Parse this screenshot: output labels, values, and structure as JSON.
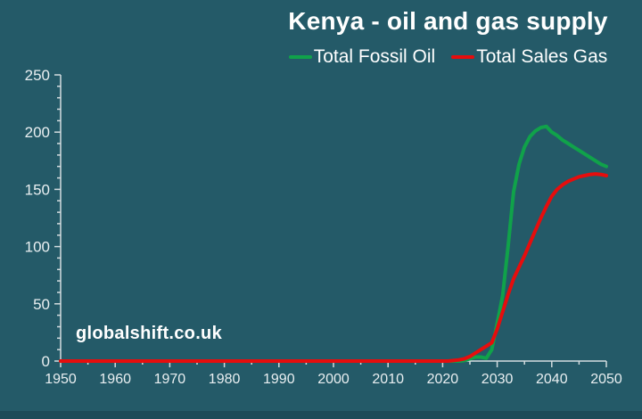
{
  "page": {
    "background_color": "#245a68",
    "footer_band_color": "#1d4b58"
  },
  "header": {
    "title": "Kenya - oil and gas supply"
  },
  "legend": {
    "position": "top",
    "items": [
      {
        "label": "Total Fossil Oil",
        "color": "#10a24a"
      },
      {
        "label": "Total Sales Gas",
        "color": "#e60d0d"
      }
    ]
  },
  "watermark": {
    "text": "globalshift.co.uk"
  },
  "chart_data": {
    "type": "line",
    "title": "Kenya - oil and gas supply",
    "xlabel": "",
    "ylabel": "",
    "xlim": [
      1950,
      2050
    ],
    "ylim": [
      0,
      250
    ],
    "x_major_ticks": [
      1950,
      1960,
      1970,
      1980,
      1990,
      2000,
      2010,
      2020,
      2030,
      2040,
      2050
    ],
    "x_minor_step": 5,
    "y_major_ticks": [
      0,
      50,
      100,
      150,
      200,
      250
    ],
    "y_minor_step": 10,
    "grid": false,
    "legend_position": "top",
    "axis_color": "#d3dcdf",
    "tick_label_color": "#e9eff1",
    "series": [
      {
        "name": "Total Fossil Oil",
        "color": "#10a24a",
        "points": [
          [
            1950,
            0
          ],
          [
            1960,
            0
          ],
          [
            1970,
            0
          ],
          [
            1980,
            0
          ],
          [
            1990,
            0
          ],
          [
            2000,
            0
          ],
          [
            2010,
            0
          ],
          [
            2015,
            0
          ],
          [
            2020,
            0
          ],
          [
            2022,
            0
          ],
          [
            2023,
            0
          ],
          [
            2024,
            0.5
          ],
          [
            2025,
            2
          ],
          [
            2026,
            3.5
          ],
          [
            2027,
            3.5
          ],
          [
            2028,
            2.5
          ],
          [
            2029,
            10
          ],
          [
            2030,
            33
          ],
          [
            2031,
            57
          ],
          [
            2032,
            100
          ],
          [
            2033,
            148
          ],
          [
            2034,
            172
          ],
          [
            2035,
            187
          ],
          [
            2036,
            196
          ],
          [
            2037,
            201
          ],
          [
            2038,
            204
          ],
          [
            2039,
            205
          ],
          [
            2040,
            200
          ],
          [
            2041,
            197
          ],
          [
            2042,
            193
          ],
          [
            2043,
            190
          ],
          [
            2044,
            187
          ],
          [
            2045,
            184
          ],
          [
            2046,
            181
          ],
          [
            2047,
            178
          ],
          [
            2048,
            175
          ],
          [
            2049,
            172
          ],
          [
            2050,
            170
          ]
        ]
      },
      {
        "name": "Total Sales Gas",
        "color": "#e60d0d",
        "points": [
          [
            1950,
            0
          ],
          [
            1960,
            0
          ],
          [
            1970,
            0
          ],
          [
            1980,
            0
          ],
          [
            1990,
            0
          ],
          [
            2000,
            0
          ],
          [
            2010,
            0
          ],
          [
            2015,
            0
          ],
          [
            2020,
            0
          ],
          [
            2021,
            0
          ],
          [
            2022,
            0.5
          ],
          [
            2023,
            1
          ],
          [
            2024,
            2
          ],
          [
            2025,
            4
          ],
          [
            2026,
            7
          ],
          [
            2027,
            10
          ],
          [
            2028,
            13
          ],
          [
            2029,
            16
          ],
          [
            2030,
            28
          ],
          [
            2031,
            43
          ],
          [
            2032,
            58
          ],
          [
            2033,
            72
          ],
          [
            2034,
            82
          ],
          [
            2035,
            92
          ],
          [
            2036,
            103
          ],
          [
            2037,
            114
          ],
          [
            2038,
            125
          ],
          [
            2039,
            135
          ],
          [
            2040,
            144
          ],
          [
            2041,
            150
          ],
          [
            2042,
            154
          ],
          [
            2043,
            157
          ],
          [
            2044,
            159
          ],
          [
            2045,
            161
          ],
          [
            2046,
            162
          ],
          [
            2047,
            163
          ],
          [
            2048,
            163.5
          ],
          [
            2049,
            163
          ],
          [
            2050,
            162
          ]
        ]
      }
    ]
  }
}
